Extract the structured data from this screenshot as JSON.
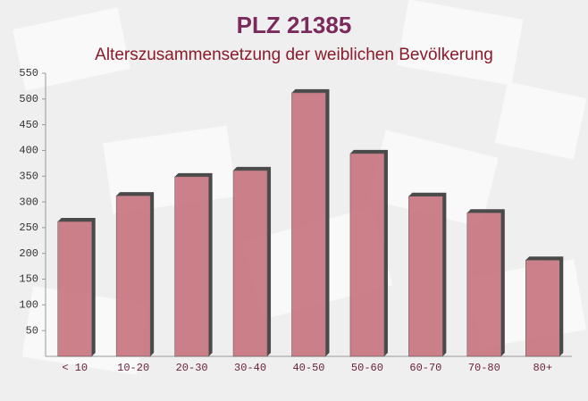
{
  "chart_data": {
    "type": "bar",
    "title": "PLZ 21385",
    "subtitle": "Alterszusammensetzung der weiblichen Bevölkerung",
    "categories": [
      "< 10",
      "10-20",
      "20-30",
      "30-40",
      "40-50",
      "50-60",
      "60-70",
      "70-80",
      "80+"
    ],
    "values": [
      262,
      312,
      349,
      361,
      512,
      394,
      311,
      279,
      187
    ],
    "color": "#c46b76",
    "ylim": [
      0,
      550
    ],
    "yticks": [
      50,
      100,
      150,
      200,
      250,
      300,
      350,
      400,
      450,
      500,
      550
    ]
  }
}
